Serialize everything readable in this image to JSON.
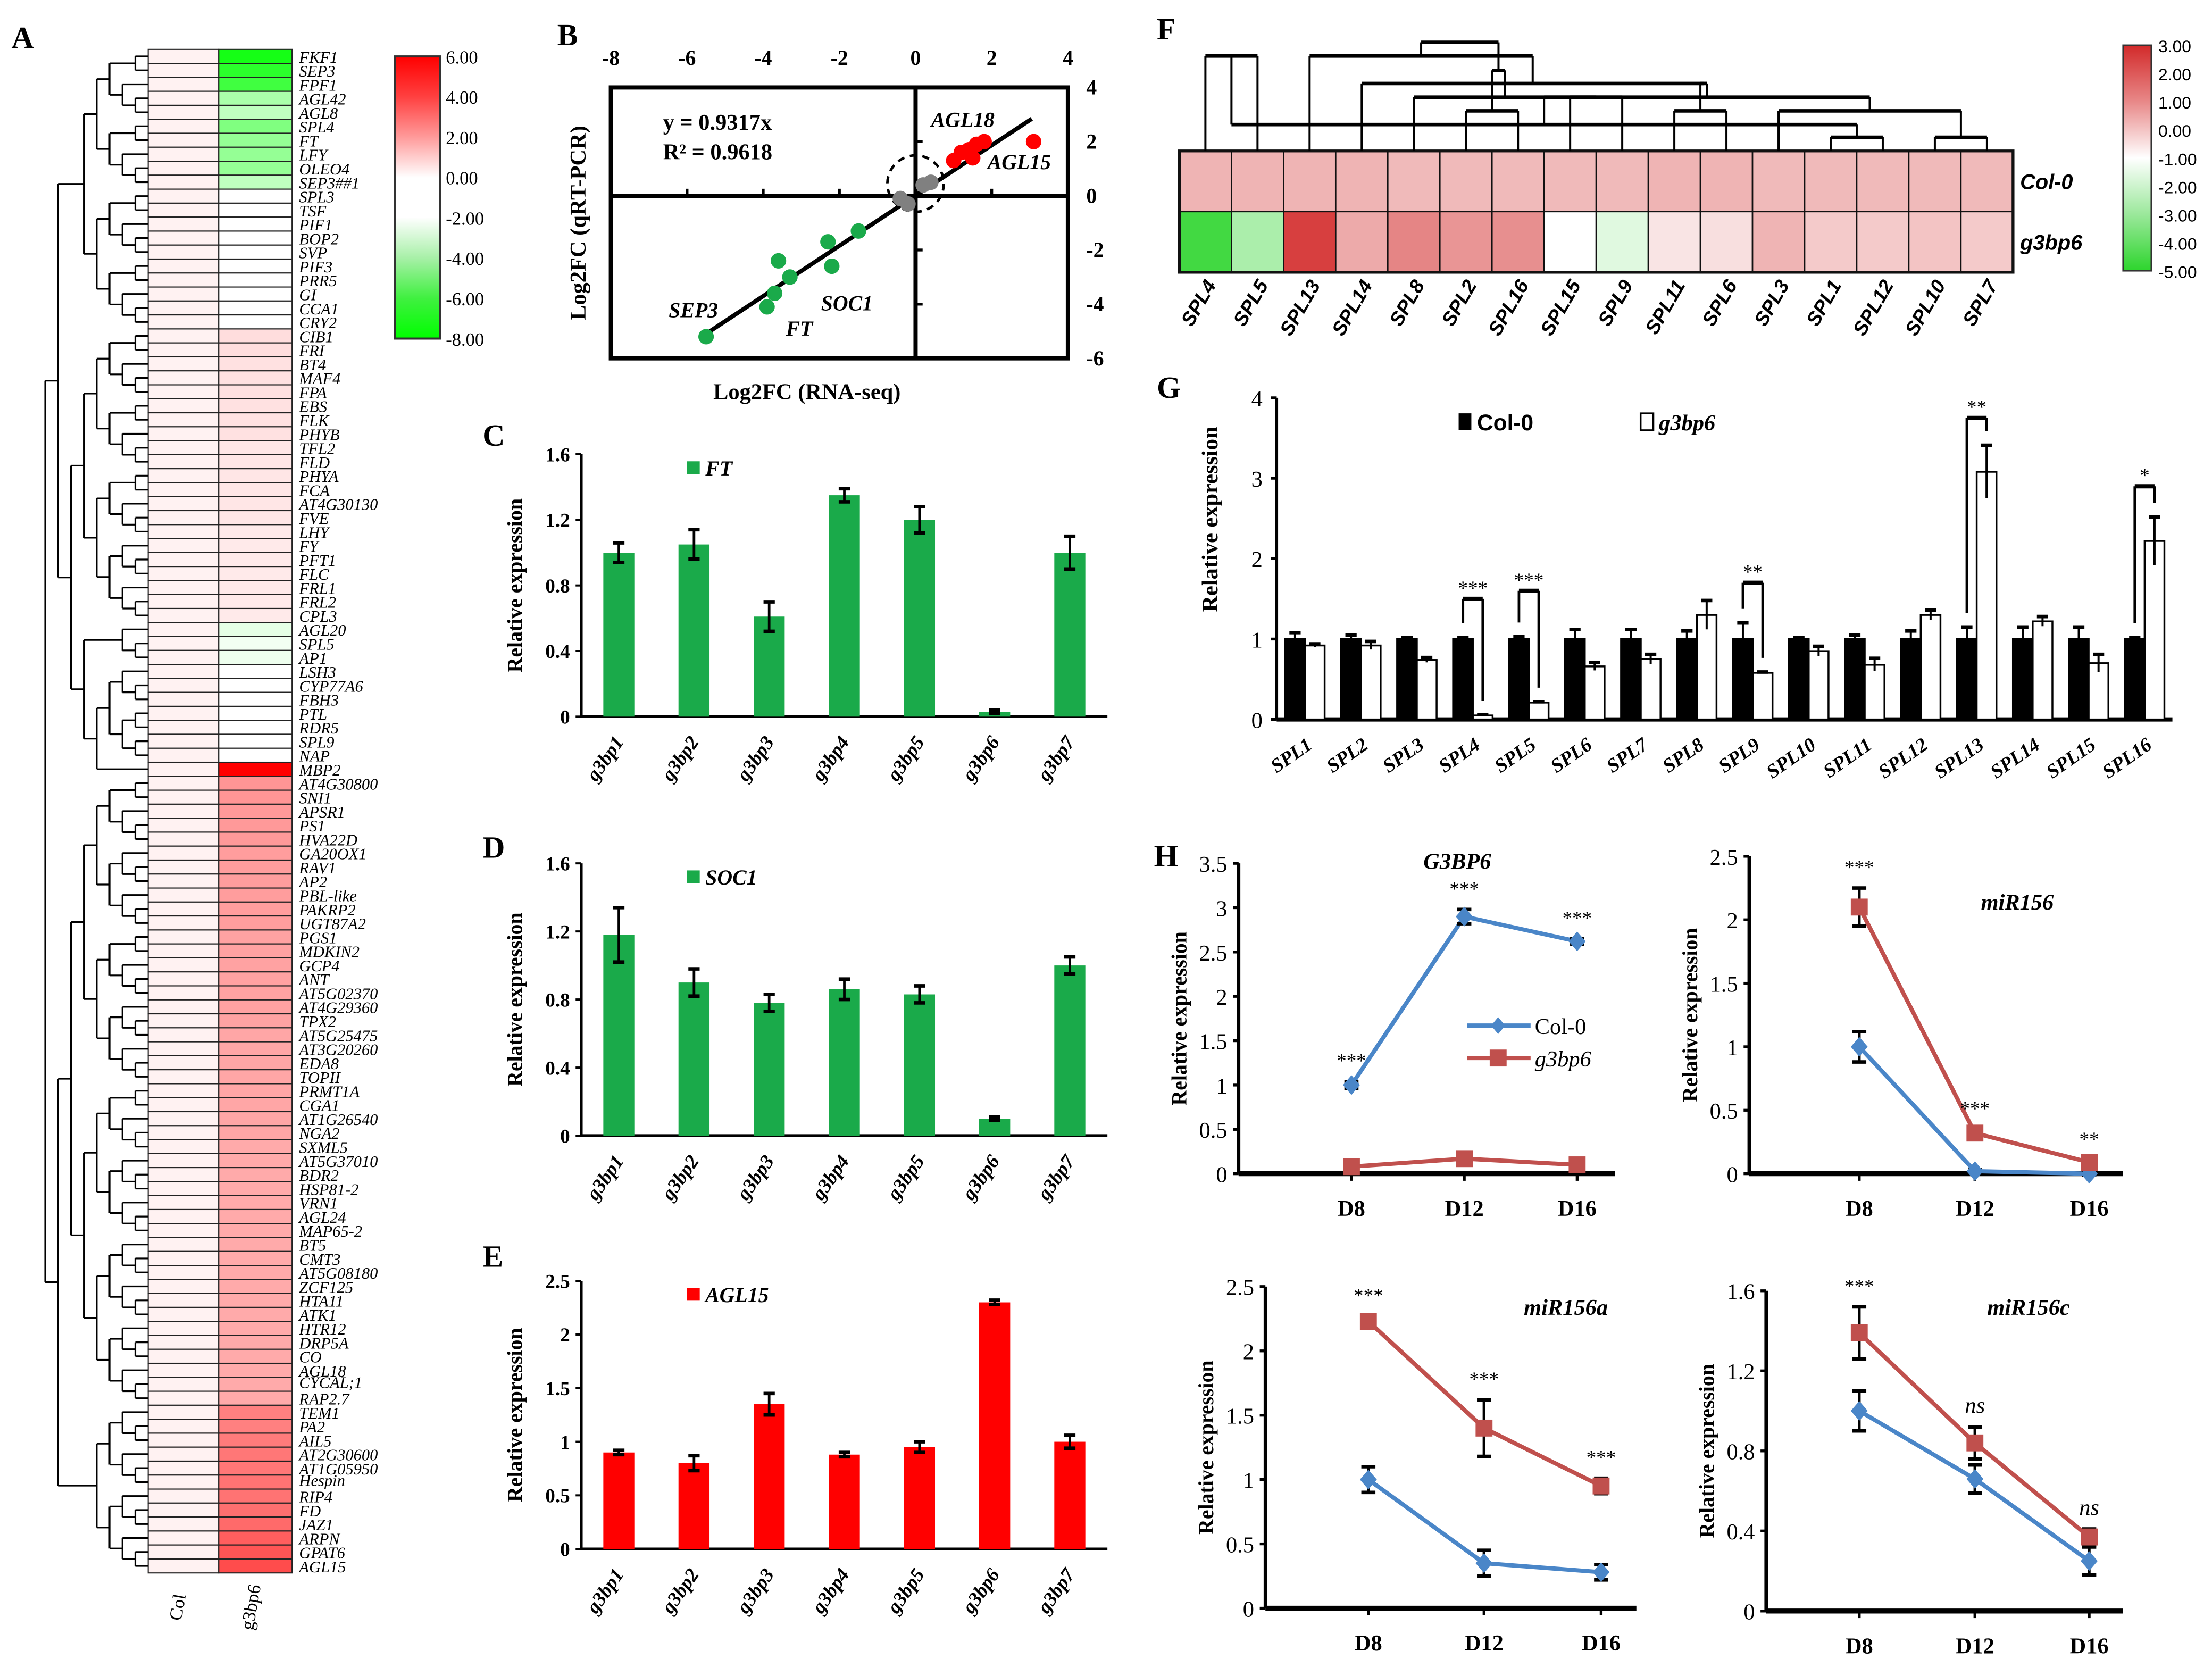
{
  "panel_labels": {
    "A": "A",
    "B": "B",
    "C": "C",
    "D": "D",
    "E": "E",
    "F": "F",
    "G": "G",
    "H": "H"
  },
  "panel_A": {
    "type": "heatmap",
    "column_labels": [
      "Col",
      "g3bp6"
    ],
    "genes": [
      "FKF1",
      "SEP3",
      "FPF1",
      "AGL42",
      "AGL8",
      "SPL4",
      "FT",
      "LFY",
      "OLEO4",
      "SEP3##1",
      "SPL3",
      "TSF",
      "PIF1",
      "BOP2",
      "SVP",
      "PIF3",
      "PRR5",
      "GI",
      "CCA1",
      "CRY2",
      "CIB1",
      "FRI",
      "BT4",
      "MAF4",
      "FPA",
      "EBS",
      "FLK",
      "PHYB",
      "TFL2",
      "FLD",
      "PHYA",
      "FCA",
      "AT4G30130",
      "FVE",
      "LHY",
      "FY",
      "PFT1",
      "FLC",
      "FRL1",
      "FRL2",
      "CPL3",
      "AGL20",
      "SPL5",
      "AP1",
      "LSH3",
      "CYP77A6",
      "FBH3",
      "PTL",
      "RDR5",
      "SPL9",
      "NAP",
      "MBP2",
      "AT4G30800",
      "SNI1",
      "APSR1",
      "PS1",
      "HVA22D",
      "GA20OX1",
      "RAV1",
      "AP2",
      "PBL-like",
      "PAKRP2",
      "UGT87A2",
      "PGS1",
      "MDKIN2",
      "GCP4",
      "ANT",
      "AT5G02370",
      "AT4G29360",
      "TPX2",
      "AT5G25475",
      "AT3G20260",
      "EDA8",
      "TOPII",
      "PRMT1A",
      "CGA1",
      "AT1G26540",
      "NGA2",
      "SXML5",
      "AT5G37010",
      "BDR2",
      "HSP81-2",
      "VRN1",
      "AGL24",
      "MAP65-2",
      "BT5",
      "CMT3",
      "AT5G08180",
      "ZCF125",
      "HTA11",
      "ATK1",
      "HTR12",
      "DRP5A",
      "CO",
      "AGL18",
      "CYCAL;1",
      "RAP2.7",
      "TEM1",
      "PA2",
      "AIL5",
      "AT2G30600",
      "AT1G05950",
      "Hespin",
      "RIP4",
      "FD",
      "JAZ1",
      "ARPN",
      "GPAT6",
      "AGL15"
    ],
    "col_value": 0.3,
    "g3bp6_values": [
      -7.5,
      -7,
      -6.5,
      -4,
      -3.5,
      -5,
      -4.5,
      -4.5,
      -4.5,
      -3.5,
      0,
      0,
      0,
      0,
      0,
      0,
      0,
      0,
      0,
      0,
      0.8,
      0.8,
      0.7,
      0.7,
      0.7,
      0.7,
      0.7,
      0.7,
      0.6,
      0.6,
      0.6,
      0.6,
      0.6,
      0.6,
      0.5,
      0.5,
      0.5,
      0.5,
      0.5,
      0.5,
      0.5,
      -2.6,
      -2.3,
      -2.4,
      0,
      0,
      0,
      0,
      0,
      0,
      0,
      6,
      2.5,
      2.5,
      2.4,
      2.4,
      2.4,
      2.3,
      2.3,
      2.3,
      2.3,
      2.3,
      2.3,
      2.2,
      2.2,
      2.2,
      2.2,
      2.2,
      2.2,
      2.2,
      2.1,
      2.1,
      2.1,
      2.1,
      2.1,
      2.1,
      2.1,
      2.1,
      2.0,
      2.0,
      2.0,
      2.0,
      2.0,
      2.0,
      2.0,
      2.0,
      2.0,
      2.0,
      2.0,
      2.0,
      2.0,
      2.0,
      2.0,
      2.0,
      2.0,
      2.0,
      2.0,
      3.0,
      3.0,
      3.1,
      3.2,
      3.2,
      3.3,
      3.3,
      3.4,
      3.5,
      3.8,
      4.0,
      4.2
    ],
    "colorbar_ticks": [
      "6.00",
      "4.00",
      "2.00",
      "0.00",
      "-2.00",
      "-4.00",
      "-6.00",
      "-8.00"
    ],
    "colors": {
      "high": "#ff0000",
      "mid": "#ffffff",
      "low": "#00ff00"
    }
  },
  "chart_data": [
    {
      "id": "B",
      "type": "scatter",
      "xlabel": "Log2FC (RNA-seq)",
      "ylabel": "Log2FC (qRT-PCR)",
      "xlim": [
        -8,
        4
      ],
      "ylim": [
        -6,
        4
      ],
      "xticks": [
        "-8",
        "-6",
        "-4",
        "-2",
        "0",
        "2",
        "4"
      ],
      "yticks": [
        "4",
        "2",
        "0",
        "-2",
        "-4",
        "-6"
      ],
      "equation": "y = 0.9317x",
      "r2": "R² = 0.9618",
      "fit_slope": 0.9317,
      "series": [
        {
          "name": "down",
          "color": "#1aaa4a",
          "points": [
            [
              -5.5,
              -5.2
            ],
            [
              -3.9,
              -4.1
            ],
            [
              -3.7,
              -3.6
            ],
            [
              -3.6,
              -2.4
            ],
            [
              -3.3,
              -3.0
            ],
            [
              -2.3,
              -1.7
            ],
            [
              -2.2,
              -2.6
            ],
            [
              -1.5,
              -1.3
            ]
          ]
        },
        {
          "name": "unchanged",
          "color": "#808080",
          "points": [
            [
              -0.4,
              -0.1
            ],
            [
              -0.2,
              -0.3
            ],
            [
              0.2,
              0.4
            ],
            [
              0.4,
              0.5
            ]
          ]
        },
        {
          "name": "up",
          "color": "#ff0000",
          "points": [
            [
              1.0,
              1.3
            ],
            [
              1.2,
              1.6
            ],
            [
              1.4,
              1.7
            ],
            [
              1.5,
              1.4
            ],
            [
              1.6,
              1.9
            ],
            [
              1.8,
              2.0
            ],
            [
              3.1,
              2.0
            ]
          ]
        }
      ],
      "annotations": [
        "AGL18",
        "AGL15",
        "SEP3",
        "SOC1",
        "FT"
      ]
    },
    {
      "id": "C",
      "type": "bar",
      "legend": "FT",
      "color": "#1aaa4a",
      "ylabel": "Relative expression",
      "ylim": [
        0,
        1.6
      ],
      "yticks": [
        "0",
        "0.4",
        "0.8",
        "1.2",
        "1.6"
      ],
      "categories": [
        "g3bp1",
        "g3bp2",
        "g3bp3",
        "g3bp4",
        "g3bp5",
        "g3bp6",
        "g3bp7"
      ],
      "values": [
        1.0,
        1.05,
        0.61,
        1.35,
        1.2,
        0.03,
        1.0
      ],
      "errors": [
        0.06,
        0.09,
        0.09,
        0.04,
        0.08,
        0.01,
        0.1
      ]
    },
    {
      "id": "D",
      "type": "bar",
      "legend": "SOC1",
      "color": "#1aaa4a",
      "ylabel": "Relative expression",
      "ylim": [
        0,
        1.6
      ],
      "yticks": [
        "0",
        "0.4",
        "0.8",
        "1.2",
        "1.6"
      ],
      "categories": [
        "g3bp1",
        "g3bp2",
        "g3bp3",
        "g3bp4",
        "g3bp5",
        "g3bp6",
        "g3bp7"
      ],
      "values": [
        1.18,
        0.9,
        0.78,
        0.86,
        0.83,
        0.1,
        1.0
      ],
      "errors": [
        0.16,
        0.08,
        0.05,
        0.06,
        0.05,
        0.01,
        0.05
      ]
    },
    {
      "id": "E",
      "type": "bar",
      "legend": "AGL15",
      "color": "#ff0000",
      "ylabel": "Relative expression",
      "ylim": [
        0,
        2.5
      ],
      "yticks": [
        "0",
        "0.5",
        "1",
        "1.5",
        "2",
        "2.5"
      ],
      "categories": [
        "g3bp1",
        "g3bp2",
        "g3bp3",
        "g3bp4",
        "g3bp5",
        "g3bp6",
        "g3bp7"
      ],
      "values": [
        0.9,
        0.8,
        1.35,
        0.88,
        0.95,
        2.3,
        1.0
      ],
      "errors": [
        0.02,
        0.07,
        0.1,
        0.02,
        0.05,
        0.02,
        0.06
      ]
    },
    {
      "id": "F",
      "type": "heatmap",
      "columns": [
        "SPL4",
        "SPL5",
        "SPL13",
        "SPL14",
        "SPL8",
        "SPL2",
        "SPL16",
        "SPL15",
        "SPL9",
        "SPL11",
        "SPL6",
        "SPL3",
        "SPL1",
        "SPL12",
        "SPL10",
        "SPL7"
      ],
      "rows": [
        "Col-0",
        "g3bp6"
      ],
      "values": [
        [
          0.4,
          0.4,
          0.4,
          0.4,
          0.3,
          0.3,
          0.3,
          0.3,
          0.3,
          0.4,
          0.4,
          0.3,
          0.3,
          0.3,
          0.3,
          0.3
        ],
        [
          -4.6,
          -2.6,
          2.6,
          0.6,
          1.3,
          1.0,
          1.1,
          -1.0,
          -1.6,
          -0.5,
          -0.4,
          0.4,
          0.0,
          0.0,
          0.1,
          0.0
        ]
      ],
      "colorbar_ticks": [
        "3.00",
        "2.00",
        "1.00",
        "0.00",
        "-1.00",
        "-2.00",
        "-3.00",
        "-4.00",
        "-5.00"
      ],
      "colors": {
        "high": "#d22a2a",
        "mid": "#ffffff",
        "low": "#2dd52d"
      }
    },
    {
      "id": "G",
      "type": "bar",
      "ylabel": "Relative expression",
      "ylim": [
        0,
        4
      ],
      "yticks": [
        "0",
        "1",
        "2",
        "3",
        "4"
      ],
      "categories": [
        "SPL1",
        "SPL2",
        "SPL3",
        "SPL4",
        "SPL5",
        "SPL6",
        "SPL7",
        "SPL8",
        "SPL9",
        "SPL10",
        "SPL11",
        "SPL12",
        "SPL13",
        "SPL14",
        "SPL15",
        "SPL16"
      ],
      "series": [
        {
          "name": "Col-0",
          "color": "#000000",
          "values": [
            1,
            1,
            1,
            1,
            1,
            1,
            1,
            1,
            1,
            1,
            1,
            1,
            1,
            1,
            1,
            1
          ],
          "errors": [
            0.08,
            0.05,
            0.02,
            0.02,
            0.03,
            0.12,
            0.12,
            0.1,
            0.2,
            0.02,
            0.05,
            0.1,
            0.15,
            0.15,
            0.15,
            0.02
          ]
        },
        {
          "name": "g3bp6",
          "color": "#ffffff",
          "values": [
            0.92,
            0.92,
            0.74,
            0.05,
            0.21,
            0.66,
            0.75,
            1.3,
            0.58,
            0.85,
            0.68,
            1.3,
            3.08,
            1.22,
            0.7,
            2.22
          ],
          "errors": [
            0.02,
            0.05,
            0.03,
            0.01,
            0.01,
            0.05,
            0.06,
            0.18,
            0.01,
            0.06,
            0.08,
            0.06,
            0.33,
            0.06,
            0.11,
            0.3
          ]
        }
      ],
      "significance": [
        {
          "category": "SPL4",
          "text": "***",
          "bracket_top": 1.5
        },
        {
          "category": "SPL5",
          "text": "***",
          "bracket_top": 1.6
        },
        {
          "category": "SPL9",
          "text": "**",
          "bracket_top": 1.7
        },
        {
          "category": "SPL13",
          "text": "**",
          "bracket_top": 3.75
        },
        {
          "category": "SPL16",
          "text": "*",
          "bracket_top": 2.9
        }
      ]
    },
    {
      "id": "H1",
      "type": "line",
      "title": "G3BP6",
      "ylabel": "Relative expression",
      "ylim": [
        0,
        3.5
      ],
      "yticks": [
        "0",
        "0.5",
        "1",
        "1.5",
        "2",
        "2.5",
        "3",
        "3.5"
      ],
      "categories": [
        "D8",
        "D12",
        "D16"
      ],
      "series": [
        {
          "name": "Col-0",
          "color": "#4a86c8",
          "marker": "diamond",
          "values": [
            1.0,
            2.9,
            2.62
          ],
          "errors": [
            0.04,
            0.08,
            0.03
          ]
        },
        {
          "name": "g3bp6",
          "color": "#c0504d",
          "marker": "square",
          "values": [
            0.08,
            0.17,
            0.1
          ],
          "errors": [
            0.02,
            0.03,
            0.02
          ]
        }
      ],
      "annotations": [
        {
          "category": "D8",
          "text": "***",
          "over": 0
        },
        {
          "category": "D12",
          "text": "***",
          "over": 0
        },
        {
          "category": "D16",
          "text": "***",
          "over": 0
        }
      ],
      "legend": [
        "Col-0",
        "g3bp6"
      ]
    },
    {
      "id": "H2",
      "type": "line",
      "title": "miR156",
      "ylabel": "Relative expression",
      "ylim": [
        0,
        2.5
      ],
      "yticks": [
        "0",
        "0.5",
        "1",
        "1.5",
        "2",
        "2.5"
      ],
      "categories": [
        "D8",
        "D12",
        "D16"
      ],
      "series": [
        {
          "name": "Col-0",
          "color": "#4a86c8",
          "marker": "diamond",
          "values": [
            1.0,
            0.02,
            0.0
          ],
          "errors": [
            0.12,
            0.01,
            0.01
          ]
        },
        {
          "name": "g3bp6",
          "color": "#c0504d",
          "marker": "square",
          "values": [
            2.1,
            0.32,
            0.09
          ],
          "errors": [
            0.15,
            0.03,
            0.02
          ]
        }
      ],
      "annotations": [
        {
          "category": "D8",
          "text": "***",
          "over": 1
        },
        {
          "category": "D12",
          "text": "***",
          "over": 1
        },
        {
          "category": "D16",
          "text": "**",
          "over": 1
        }
      ]
    },
    {
      "id": "H3",
      "type": "line",
      "title": "miR156a",
      "ylabel": "Relative expression",
      "ylim": [
        0,
        2.5
      ],
      "yticks": [
        "0",
        "0.5",
        "1",
        "1.5",
        "2",
        "2.5"
      ],
      "categories": [
        "D8",
        "D12",
        "D16"
      ],
      "series": [
        {
          "name": "Col-0",
          "color": "#4a86c8",
          "marker": "diamond",
          "values": [
            1.0,
            0.35,
            0.28
          ],
          "errors": [
            0.1,
            0.1,
            0.06
          ]
        },
        {
          "name": "g3bp6",
          "color": "#c0504d",
          "marker": "square",
          "values": [
            2.23,
            1.4,
            0.95
          ],
          "errors": [
            0.04,
            0.22,
            0.06
          ]
        }
      ],
      "annotations": [
        {
          "category": "D8",
          "text": "***",
          "over": 1
        },
        {
          "category": "D12",
          "text": "***",
          "over": 1
        },
        {
          "category": "D16",
          "text": "***",
          "over": 1
        }
      ]
    },
    {
      "id": "H4",
      "type": "line",
      "title": "miR156c",
      "ylabel": "Relative expression",
      "ylim": [
        0,
        1.6
      ],
      "yticks": [
        "0",
        "0.4",
        "0.8",
        "1.2",
        "1.6"
      ],
      "categories": [
        "D8",
        "D12",
        "D16"
      ],
      "series": [
        {
          "name": "Col-0",
          "color": "#4a86c8",
          "marker": "diamond",
          "values": [
            1.0,
            0.66,
            0.25
          ],
          "errors": [
            0.1,
            0.07,
            0.07
          ]
        },
        {
          "name": "g3bp6",
          "color": "#c0504d",
          "marker": "square",
          "values": [
            1.39,
            0.84,
            0.37
          ],
          "errors": [
            0.13,
            0.08,
            0.04
          ]
        }
      ],
      "annotations": [
        {
          "category": "D8",
          "text": "***",
          "over": 1
        },
        {
          "category": "D12",
          "text": "ns",
          "over": 1
        },
        {
          "category": "D16",
          "text": "ns",
          "over": 1
        }
      ]
    }
  ]
}
